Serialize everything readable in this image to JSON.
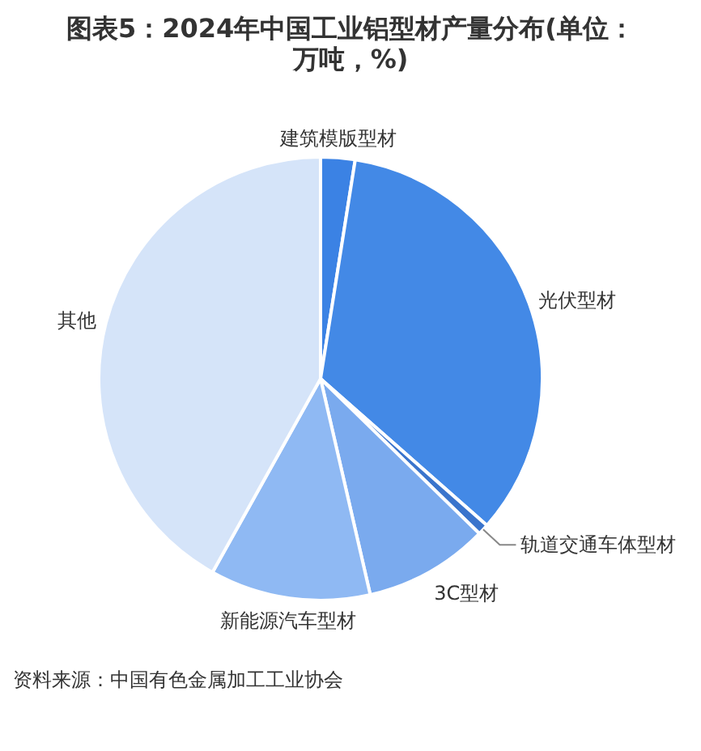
{
  "chart_data": {
    "type": "pie",
    "title": "图表5：2024年中国工业铝型材产量分布(单位：万吨，%)",
    "categories": [
      "建筑模版型材",
      "光伏型材",
      "轨道交通车体型材",
      "3C型材",
      "新能源汽车型材",
      "其他"
    ],
    "values": [
      2.5,
      34,
      0.8,
      9.1,
      11.7,
      41.9
    ],
    "colors": [
      "#3b82e4",
      "#4389e6",
      "#3a74cc",
      "#7aaaee",
      "#8fb9f3",
      "#d5e4f9"
    ],
    "annotations": [
      "资料来源：中国有色金属加工工业协会"
    ]
  }
}
